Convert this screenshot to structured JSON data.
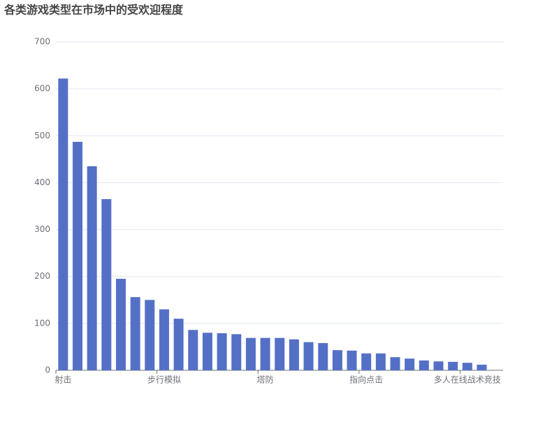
{
  "chart_data": {
    "type": "bar",
    "title": "各类游戏类型在市场中的受欢迎程度",
    "categories": [
      "射击",
      null,
      null,
      null,
      null,
      null,
      null,
      "步行模拟",
      null,
      null,
      null,
      null,
      null,
      null,
      "塔防",
      null,
      null,
      null,
      null,
      null,
      null,
      "指向点击",
      null,
      null,
      null,
      null,
      null,
      null,
      "多人在线战术竞技",
      null
    ],
    "values": [
      622,
      487,
      435,
      365,
      195,
      156,
      150,
      130,
      110,
      86,
      80,
      79,
      77,
      69,
      69,
      69,
      66,
      60,
      58,
      43,
      42,
      36,
      36,
      28,
      25,
      21,
      19,
      18,
      16,
      12
    ],
    "color": "#5470c6",
    "ylim": [
      0,
      700
    ],
    "yticks": [
      0,
      100,
      200,
      300,
      400,
      500,
      600,
      700
    ],
    "grid": true
  }
}
